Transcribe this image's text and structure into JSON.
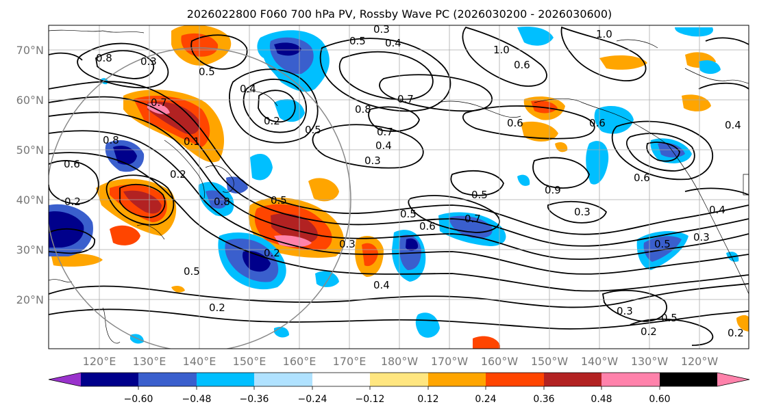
{
  "title": "2026022800 F060 700 hPa PV, Rossby Wave PC (2026030200 - 2026030600)",
  "lat_labels": [
    "70°N",
    "60°N",
    "50°N",
    "40°N",
    "30°N",
    "20°N"
  ],
  "lon_labels": [
    "120°E",
    "130°E",
    "140°E",
    "150°E",
    "160°E",
    "170°E",
    "180°W",
    "170°W",
    "160°W",
    "150°W",
    "140°W",
    "130°W",
    "120°W"
  ],
  "colorbar": {
    "ticks": [
      "−0.60",
      "−0.48",
      "−0.36",
      "−0.24",
      "−0.12",
      "0.12",
      "0.24",
      "0.36",
      "0.48",
      "0.60"
    ],
    "colors": [
      "#9932CC",
      "#00008B",
      "#3A5FCD",
      "#00BFFF",
      "#B0E2FF",
      "#FFFFFF",
      "#FFE680",
      "#FFA500",
      "#FF4500",
      "#B22222",
      "#FF82AB"
    ]
  },
  "contour_labels": [
    "0.3",
    "0.5",
    "0.4",
    "1.0",
    "0.6",
    "0.8",
    "0.3",
    "0.5",
    "0.4",
    "0.7",
    "0.2",
    "0.5",
    "0.8",
    "0.7",
    "0.4",
    "0.3",
    "0.6",
    "0.4",
    "0.8",
    "0.6",
    "0.2",
    "0.1",
    "0.2",
    "0.5",
    "0.7",
    "0.6",
    "0.3",
    "0.4",
    "0.5",
    "0.5",
    "0.3",
    "0.2",
    "0.5",
    "0.2",
    "0.4",
    "0.3",
    "0.3",
    "0.2",
    "0.5",
    "0.6",
    "0.9",
    "0.5",
    "0.8",
    "1.0",
    "0.7",
    "0.6",
    "0.2"
  ]
}
